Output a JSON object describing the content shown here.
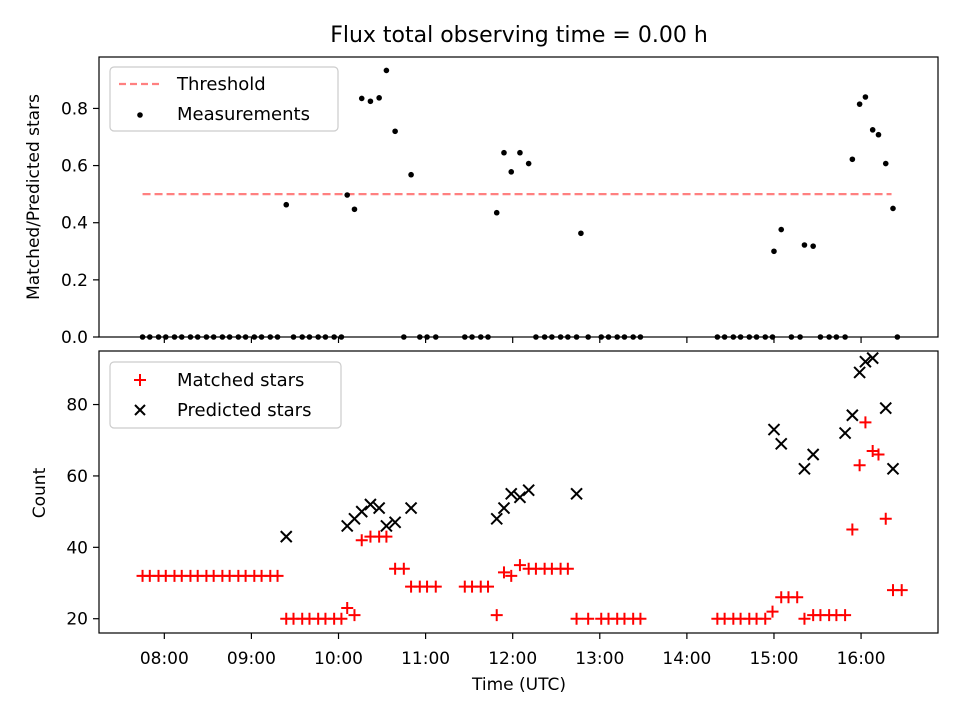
{
  "chart_data": [
    {
      "type": "scatter",
      "title": "Flux total observing time = 0.00 h",
      "xlabel": "",
      "ylabel": "Matched/Predicted stars",
      "ylim": [
        0,
        0.98
      ],
      "yticks": [
        "0.0",
        "0.2",
        "0.4",
        "0.6",
        "0.8"
      ],
      "legend": {
        "position": "top-left",
        "entries": [
          "Threshold",
          "Measurements"
        ]
      },
      "threshold": {
        "name": "Threshold",
        "value": 0.5,
        "x_start": "07:45",
        "x_end": "16:21",
        "color": "#ff8080"
      },
      "series": [
        {
          "name": "Measurements",
          "color": "#000000",
          "points": [
            [
              "07:45",
              0
            ],
            [
              "07:50",
              0
            ],
            [
              "07:56",
              0
            ],
            [
              "08:01",
              0
            ],
            [
              "08:07",
              0
            ],
            [
              "08:12",
              0
            ],
            [
              "08:18",
              0
            ],
            [
              "08:23",
              0
            ],
            [
              "08:29",
              0
            ],
            [
              "08:34",
              0
            ],
            [
              "08:40",
              0
            ],
            [
              "08:45",
              0
            ],
            [
              "08:51",
              0
            ],
            [
              "08:56",
              0
            ],
            [
              "09:02",
              0
            ],
            [
              "09:07",
              0
            ],
            [
              "09:13",
              0
            ],
            [
              "09:18",
              0
            ],
            [
              "09:24",
              0.463
            ],
            [
              "09:29",
              0
            ],
            [
              "09:35",
              0
            ],
            [
              "09:40",
              0
            ],
            [
              "09:46",
              0
            ],
            [
              "09:51",
              0
            ],
            [
              "09:57",
              0
            ],
            [
              "10:02",
              0
            ],
            [
              "10:06",
              0.497
            ],
            [
              "10:11",
              0.447
            ],
            [
              "10:16",
              0.835
            ],
            [
              "10:22",
              0.825
            ],
            [
              "10:28",
              0.837
            ],
            [
              "10:33",
              0.933
            ],
            [
              "10:39",
              0.72
            ],
            [
              "10:45",
              0
            ],
            [
              "10:50",
              0.568
            ],
            [
              "10:56",
              0
            ],
            [
              "11:01",
              0
            ],
            [
              "11:07",
              0
            ],
            [
              "11:27",
              0
            ],
            [
              "11:32",
              0
            ],
            [
              "11:38",
              0
            ],
            [
              "11:43",
              0
            ],
            [
              "11:49",
              0.435
            ],
            [
              "11:54",
              0.645
            ],
            [
              "11:59",
              0.578
            ],
            [
              "12:05",
              0.645
            ],
            [
              "12:11",
              0.607
            ],
            [
              "12:16",
              0
            ],
            [
              "12:22",
              0
            ],
            [
              "12:27",
              0
            ],
            [
              "12:33",
              0
            ],
            [
              "12:38",
              0
            ],
            [
              "12:44",
              0
            ],
            [
              "12:47",
              0.363
            ],
            [
              "12:52",
              0
            ],
            [
              "13:01",
              0
            ],
            [
              "13:06",
              0
            ],
            [
              "13:12",
              0
            ],
            [
              "13:17",
              0
            ],
            [
              "13:23",
              0
            ],
            [
              "13:28",
              0
            ],
            [
              "14:21",
              0
            ],
            [
              "14:26",
              0
            ],
            [
              "14:32",
              0
            ],
            [
              "14:37",
              0
            ],
            [
              "14:43",
              0
            ],
            [
              "14:48",
              0
            ],
            [
              "14:54",
              0
            ],
            [
              "14:59",
              0
            ],
            [
              "15:00",
              0.3
            ],
            [
              "15:05",
              0.376
            ],
            [
              "15:12",
              0
            ],
            [
              "15:18",
              0
            ],
            [
              "15:21",
              0.322
            ],
            [
              "15:27",
              0.318
            ],
            [
              "15:32",
              0
            ],
            [
              "15:38",
              0
            ],
            [
              "15:43",
              0
            ],
            [
              "15:49",
              0
            ],
            [
              "15:54",
              0.622
            ],
            [
              "15:59",
              0.815
            ],
            [
              "16:03",
              0.84
            ],
            [
              "16:08",
              0.725
            ],
            [
              "16:12",
              0.708
            ],
            [
              "16:17",
              0.607
            ],
            [
              "16:22",
              0.45
            ],
            [
              "16:25",
              0
            ]
          ]
        }
      ]
    },
    {
      "type": "scatter",
      "title": "",
      "xlabel": "Time (UTC)",
      "ylabel": "Count",
      "ylim": [
        16,
        95
      ],
      "yticks": [
        "20",
        "40",
        "60",
        "80"
      ],
      "xlim": [
        "07:15",
        "16:53"
      ],
      "xticks": [
        "08:00",
        "09:00",
        "10:00",
        "11:00",
        "12:00",
        "13:00",
        "14:00",
        "15:00",
        "16:00"
      ],
      "legend": {
        "position": "top-left",
        "entries": [
          "Matched stars",
          "Predicted stars"
        ]
      },
      "series": [
        {
          "name": "Matched stars",
          "marker": "plus",
          "color": "#ff0000",
          "points": [
            [
              "07:45",
              32
            ],
            [
              "07:50",
              32
            ],
            [
              "07:56",
              32
            ],
            [
              "08:01",
              32
            ],
            [
              "08:07",
              32
            ],
            [
              "08:12",
              32
            ],
            [
              "08:18",
              32
            ],
            [
              "08:23",
              32
            ],
            [
              "08:29",
              32
            ],
            [
              "08:34",
              32
            ],
            [
              "08:40",
              32
            ],
            [
              "08:45",
              32
            ],
            [
              "08:51",
              32
            ],
            [
              "08:56",
              32
            ],
            [
              "09:02",
              32
            ],
            [
              "09:07",
              32
            ],
            [
              "09:13",
              32
            ],
            [
              "09:18",
              32
            ],
            [
              "09:24",
              20
            ],
            [
              "09:29",
              20
            ],
            [
              "09:35",
              20
            ],
            [
              "09:40",
              20
            ],
            [
              "09:46",
              20
            ],
            [
              "09:51",
              20
            ],
            [
              "09:57",
              20
            ],
            [
              "10:02",
              20
            ],
            [
              "10:06",
              23
            ],
            [
              "10:11",
              21
            ],
            [
              "10:16",
              42
            ],
            [
              "10:22",
              43
            ],
            [
              "10:28",
              43
            ],
            [
              "10:33",
              43
            ],
            [
              "10:39",
              34
            ],
            [
              "10:45",
              34
            ],
            [
              "10:50",
              29
            ],
            [
              "10:56",
              29
            ],
            [
              "11:01",
              29
            ],
            [
              "11:07",
              29
            ],
            [
              "11:27",
              29
            ],
            [
              "11:32",
              29
            ],
            [
              "11:38",
              29
            ],
            [
              "11:43",
              29
            ],
            [
              "11:49",
              21
            ],
            [
              "11:54",
              33
            ],
            [
              "11:59",
              32
            ],
            [
              "12:05",
              35
            ],
            [
              "12:11",
              34
            ],
            [
              "12:16",
              34
            ],
            [
              "12:22",
              34
            ],
            [
              "12:27",
              34
            ],
            [
              "12:33",
              34
            ],
            [
              "12:38",
              34
            ],
            [
              "12:44",
              20
            ],
            [
              "12:52",
              20
            ],
            [
              "13:01",
              20
            ],
            [
              "13:06",
              20
            ],
            [
              "13:12",
              20
            ],
            [
              "13:17",
              20
            ],
            [
              "13:23",
              20
            ],
            [
              "13:28",
              20
            ],
            [
              "14:21",
              20
            ],
            [
              "14:26",
              20
            ],
            [
              "14:32",
              20
            ],
            [
              "14:37",
              20
            ],
            [
              "14:43",
              20
            ],
            [
              "14:48",
              20
            ],
            [
              "14:54",
              20
            ],
            [
              "14:59",
              22
            ],
            [
              "15:05",
              26
            ],
            [
              "15:10",
              26
            ],
            [
              "15:16",
              26
            ],
            [
              "15:21",
              20
            ],
            [
              "15:27",
              21
            ],
            [
              "15:32",
              21
            ],
            [
              "15:38",
              21
            ],
            [
              "15:43",
              21
            ],
            [
              "15:49",
              21
            ],
            [
              "15:54",
              45
            ],
            [
              "15:59",
              63
            ],
            [
              "16:03",
              75
            ],
            [
              "16:08",
              67
            ],
            [
              "16:12",
              66
            ],
            [
              "16:17",
              48
            ],
            [
              "16:22",
              28
            ],
            [
              "16:28",
              28
            ]
          ]
        },
        {
          "name": "Predicted stars",
          "marker": "x",
          "color": "#000000",
          "points": [
            [
              "09:24",
              43
            ],
            [
              "10:06",
              46
            ],
            [
              "10:11",
              48
            ],
            [
              "10:16",
              50
            ],
            [
              "10:22",
              52
            ],
            [
              "10:28",
              51
            ],
            [
              "10:33",
              46
            ],
            [
              "10:39",
              47
            ],
            [
              "10:50",
              51
            ],
            [
              "11:49",
              48
            ],
            [
              "11:54",
              51
            ],
            [
              "11:59",
              55
            ],
            [
              "12:05",
              54
            ],
            [
              "12:11",
              56
            ],
            [
              "12:44",
              55
            ],
            [
              "15:00",
              73
            ],
            [
              "15:05",
              69
            ],
            [
              "15:21",
              62
            ],
            [
              "15:27",
              66
            ],
            [
              "15:49",
              72
            ],
            [
              "15:54",
              77
            ],
            [
              "15:59",
              89
            ],
            [
              "16:03",
              92
            ],
            [
              "16:08",
              93
            ],
            [
              "16:17",
              79
            ],
            [
              "16:22",
              62
            ]
          ]
        }
      ]
    }
  ]
}
